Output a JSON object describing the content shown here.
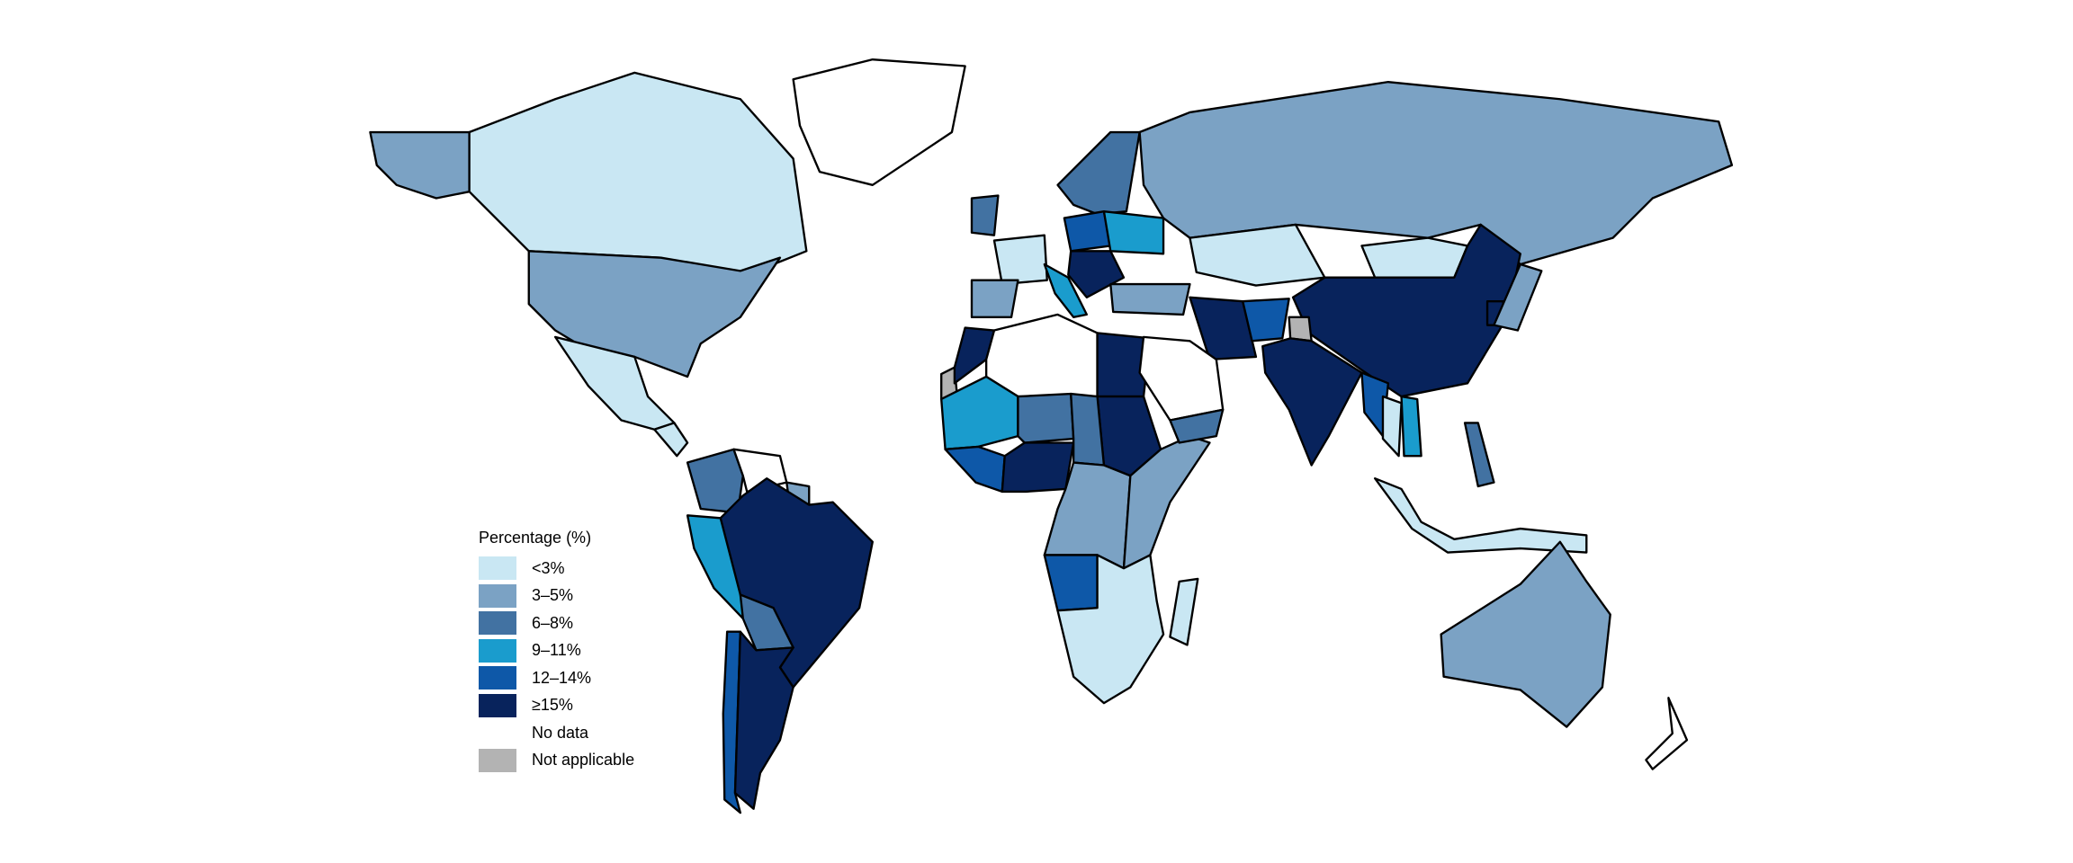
{
  "legend": {
    "title": "Percentage (%)",
    "items": [
      {
        "label": "<3%",
        "color": "#c9e7f3"
      },
      {
        "label": "3–5%",
        "color": "#7ba2c4"
      },
      {
        "label": "6–8%",
        "color": "#4272a2"
      },
      {
        "label": "9–11%",
        "color": "#1a9ccd"
      },
      {
        "label": "12–14%",
        "color": "#0e58a8"
      },
      {
        "label": "≥15%",
        "color": "#08235c"
      },
      {
        "label": "No data",
        "color": "#ffffff"
      },
      {
        "label": "Not applicable",
        "color": "#b3b3b3"
      }
    ]
  },
  "map": {
    "fills": {
      "canada": 0,
      "alaska": 1,
      "usa": 1,
      "greenland": 6,
      "mexico": 0,
      "central-america": 0,
      "colombia": 2,
      "venezuela": 6,
      "peru": 3,
      "brazil": 5,
      "bolivia": 2,
      "chile": 4,
      "argentina": 5,
      "guianas": 1,
      "morocco": 5,
      "western-sahara": 7,
      "north-africa": 6,
      "egypt": 5,
      "sudan": 5,
      "mali": 3,
      "niger": 2,
      "nigeria": 5,
      "chad": 2,
      "west-coast": 4,
      "central-africa": 1,
      "east-africa": 1,
      "angola": 4,
      "southern-africa": 0,
      "madagascar": 0,
      "scandinavia": 2,
      "uk": 2,
      "france": 0,
      "spain": 1,
      "italy": 3,
      "poland": 4,
      "ukraine": 3,
      "balkans": 5,
      "turkey": 1,
      "russia": 1,
      "kazakhstan": 0,
      "mongolia": 0,
      "china": 5,
      "india": 5,
      "iran": 5,
      "afghanistan": 4,
      "saudi-arabia": 6,
      "yemen": 2,
      "myanmar": 4,
      "thailand": 0,
      "vietnam": 3,
      "japan": 1,
      "korea": 5,
      "indonesia": 0,
      "philippines": 2,
      "australia": 1,
      "new-zealand": 6,
      "kashmir": 7
    }
  }
}
